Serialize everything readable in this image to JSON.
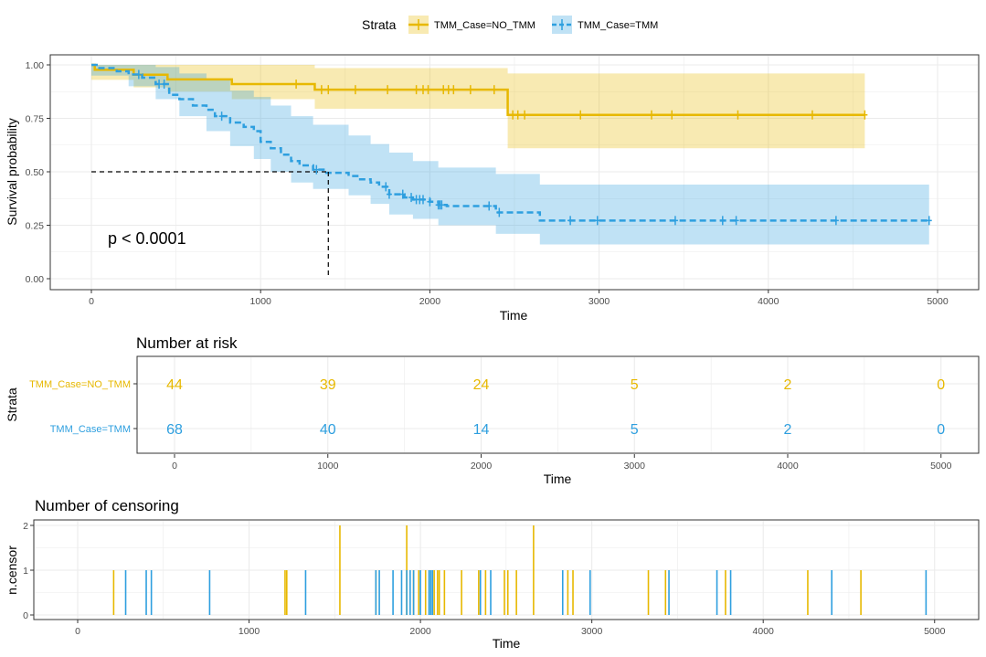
{
  "colors": {
    "no_tmm": "#E7B800",
    "tmm": "#2E9FDF",
    "grid": "#EBEBEB",
    "frame": "#333333"
  },
  "legend": {
    "title": "Strata",
    "items": [
      "TMM_Case=NO_TMM",
      "TMM_Case=TMM"
    ]
  },
  "survival": {
    "ylabel": "Survival probability",
    "xlabel": "Time",
    "pvalue": "p < 0.0001",
    "y_ticks": [
      "0.00",
      "0.25",
      "0.50",
      "0.75",
      "1.00"
    ],
    "x_ticks": [
      "0",
      "1000",
      "2000",
      "3000",
      "4000",
      "5000"
    ]
  },
  "risk": {
    "title": "Number at risk",
    "ylabel": "Strata",
    "xlabel": "Time",
    "x_ticks": [
      "0",
      "1000",
      "2000",
      "3000",
      "4000",
      "5000"
    ]
  },
  "censor": {
    "title": "Number of censoring",
    "ylabel": "n.censor",
    "xlabel": "Time",
    "y_ticks": [
      "0",
      "1",
      "2"
    ],
    "x_ticks": [
      "0",
      "1000",
      "2000",
      "3000",
      "4000",
      "5000"
    ]
  },
  "chart_data": [
    {
      "type": "line",
      "xlim": [
        -150,
        5150
      ],
      "ylim": [
        -0.05,
        1.05
      ],
      "median_survival": 1400,
      "series": [
        {
          "name": "TMM_Case=NO_TMM",
          "steps": [
            [
              0,
              1.0
            ],
            [
              20,
              0.977
            ],
            [
              250,
              0.954
            ],
            [
              450,
              0.932
            ],
            [
              830,
              0.91
            ],
            [
              1320,
              0.884
            ],
            [
              2460,
              0.766
            ],
            [
              4570,
              0.766
            ]
          ],
          "ci": [
            [
              0,
              0.93,
              1.0
            ],
            [
              250,
              0.895,
              1.0
            ],
            [
              450,
              0.875,
              1.0
            ],
            [
              830,
              0.84,
              1.0
            ],
            [
              1320,
              0.795,
              0.985
            ],
            [
              2460,
              0.61,
              0.96
            ],
            [
              4570,
              0.61,
              0.96
            ]
          ],
          "censor_times": [
            1210,
            1360,
            1400,
            1560,
            1750,
            1920,
            1960,
            1990,
            2080,
            2110,
            2140,
            2240,
            2380,
            2490,
            2520,
            2560,
            2890,
            3310,
            3430,
            3820,
            4260,
            4570
          ]
        },
        {
          "name": "TMM_Case=TMM",
          "steps": [
            [
              0,
              1.0
            ],
            [
              40,
              0.985
            ],
            [
              150,
              0.97
            ],
            [
              220,
              0.955
            ],
            [
              300,
              0.94
            ],
            [
              380,
              0.91
            ],
            [
              460,
              0.86
            ],
            [
              520,
              0.84
            ],
            [
              600,
              0.81
            ],
            [
              680,
              0.79
            ],
            [
              730,
              0.76
            ],
            [
              820,
              0.73
            ],
            [
              900,
              0.71
            ],
            [
              960,
              0.69
            ],
            [
              1000,
              0.64
            ],
            [
              1060,
              0.61
            ],
            [
              1120,
              0.58
            ],
            [
              1180,
              0.55
            ],
            [
              1230,
              0.53
            ],
            [
              1310,
              0.51
            ],
            [
              1380,
              0.495
            ],
            [
              1520,
              0.48
            ],
            [
              1580,
              0.465
            ],
            [
              1650,
              0.45
            ],
            [
              1700,
              0.43
            ],
            [
              1760,
              0.395
            ],
            [
              1850,
              0.38
            ],
            [
              1900,
              0.37
            ],
            [
              2000,
              0.36
            ],
            [
              2050,
              0.345
            ],
            [
              2100,
              0.34
            ],
            [
              2390,
              0.31
            ],
            [
              2650,
              0.272
            ],
            [
              4950,
              0.272
            ]
          ],
          "ci": [
            [
              0,
              0.95,
              1.0
            ],
            [
              220,
              0.9,
              1.0
            ],
            [
              380,
              0.84,
              0.99
            ],
            [
              520,
              0.76,
              0.96
            ],
            [
              680,
              0.69,
              0.93
            ],
            [
              820,
              0.62,
              0.88
            ],
            [
              960,
              0.56,
              0.85
            ],
            [
              1060,
              0.5,
              0.81
            ],
            [
              1180,
              0.45,
              0.76
            ],
            [
              1310,
              0.42,
              0.72
            ],
            [
              1520,
              0.39,
              0.67
            ],
            [
              1650,
              0.35,
              0.63
            ],
            [
              1760,
              0.3,
              0.59
            ],
            [
              1900,
              0.28,
              0.55
            ],
            [
              2050,
              0.25,
              0.52
            ],
            [
              2390,
              0.21,
              0.49
            ],
            [
              2650,
              0.16,
              0.44
            ],
            [
              4950,
              0.16,
              0.44
            ]
          ],
          "censor_times": [
            280,
            400,
            430,
            770,
            1330,
            1740,
            1760,
            1840,
            1890,
            1920,
            1940,
            1960,
            2000,
            2050,
            2060,
            2070,
            2350,
            2410,
            2830,
            2990,
            3450,
            3730,
            3810,
            4400,
            4950
          ]
        }
      ]
    },
    {
      "type": "table",
      "title": "Number at risk",
      "times": [
        0,
        1000,
        2000,
        3000,
        4000,
        5000
      ],
      "series": [
        {
          "name": "TMM_Case=NO_TMM",
          "values": [
            44,
            39,
            24,
            5,
            2,
            0
          ]
        },
        {
          "name": "TMM_Case=TMM",
          "values": [
            68,
            40,
            14,
            5,
            2,
            0
          ]
        }
      ]
    },
    {
      "type": "bar",
      "title": "Number of censoring",
      "ylim": [
        0,
        2
      ],
      "series": [
        {
          "name": "TMM_Case=NO_TMM",
          "events": [
            [
              210,
              1
            ],
            [
              1210,
              1
            ],
            [
              1220,
              1
            ],
            [
              1530,
              2
            ],
            [
              1740,
              1
            ],
            [
              1920,
              2
            ],
            [
              1960,
              1
            ],
            [
              1990,
              1
            ],
            [
              2030,
              1
            ],
            [
              2080,
              1
            ],
            [
              2100,
              1
            ],
            [
              2110,
              1
            ],
            [
              2140,
              1
            ],
            [
              2240,
              1
            ],
            [
              2340,
              1
            ],
            [
              2380,
              1
            ],
            [
              2490,
              1
            ],
            [
              2510,
              1
            ],
            [
              2560,
              1
            ],
            [
              2660,
              2
            ],
            [
              2860,
              1
            ],
            [
              2890,
              1
            ],
            [
              3330,
              1
            ],
            [
              3430,
              1
            ],
            [
              3780,
              1
            ],
            [
              4260,
              1
            ],
            [
              4570,
              1
            ]
          ]
        },
        {
          "name": "TMM_Case=TMM",
          "events": [
            [
              280,
              1
            ],
            [
              400,
              1
            ],
            [
              430,
              1
            ],
            [
              770,
              1
            ],
            [
              1330,
              1
            ],
            [
              1740,
              1
            ],
            [
              1760,
              1
            ],
            [
              1840,
              1
            ],
            [
              1890,
              1
            ],
            [
              1920,
              1
            ],
            [
              1940,
              1
            ],
            [
              1960,
              1
            ],
            [
              2000,
              1
            ],
            [
              2050,
              1
            ],
            [
              2060,
              1
            ],
            [
              2070,
              1
            ],
            [
              2350,
              1
            ],
            [
              2410,
              1
            ],
            [
              2830,
              1
            ],
            [
              2990,
              1
            ],
            [
              3450,
              1
            ],
            [
              3730,
              1
            ],
            [
              3810,
              1
            ],
            [
              4400,
              1
            ],
            [
              4950,
              1
            ]
          ]
        }
      ]
    }
  ]
}
